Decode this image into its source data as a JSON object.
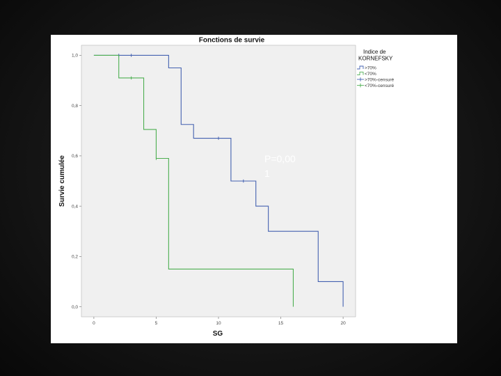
{
  "chart_data": {
    "type": "line",
    "step": true,
    "title": "Fonctions de survie",
    "xlabel": "SG",
    "ylabel": "Survie cumulée",
    "xlim": [
      -1,
      21
    ],
    "ylim": [
      -0.04,
      1.04
    ],
    "xticks": [
      0,
      5,
      10,
      15,
      20
    ],
    "yticks": [
      0.0,
      0.2,
      0.4,
      0.6,
      0.8,
      1.0
    ],
    "ytick_labels": [
      "0,0",
      "0,2",
      "0,4",
      "0,6",
      "0,8",
      "1,0"
    ],
    "grid": false,
    "legend": {
      "title_lines": [
        "Indice de",
        "KORNEFSKY"
      ],
      "placement": "right",
      "entries": [
        ">70%",
        "<70%",
        ">70%-censuré",
        "<70%-censuré"
      ]
    },
    "series": [
      {
        "name": ">70%",
        "color": "#4361b0",
        "x": [
          0,
          6,
          7,
          8,
          11,
          13,
          14,
          18,
          20
        ],
        "y": [
          1.0,
          0.95,
          0.725,
          0.67,
          0.5,
          0.4,
          0.3,
          0.1,
          0.0
        ],
        "censored": [
          [
            2,
            1.0
          ],
          [
            3,
            1.0
          ],
          [
            10,
            0.67
          ],
          [
            12,
            0.5
          ]
        ]
      },
      {
        "name": "<70%",
        "color": "#4cae50",
        "x": [
          0,
          2,
          4,
          5,
          6,
          16
        ],
        "y": [
          1.0,
          0.91,
          0.705,
          0.59,
          0.15,
          0.0
        ],
        "censored": [
          [
            3,
            0.91
          ],
          [
            5,
            0.59
          ]
        ]
      }
    ],
    "annotations": [
      {
        "text_lines": [
          "P=0,00",
          "1"
        ],
        "color": "#ffffff"
      }
    ]
  }
}
